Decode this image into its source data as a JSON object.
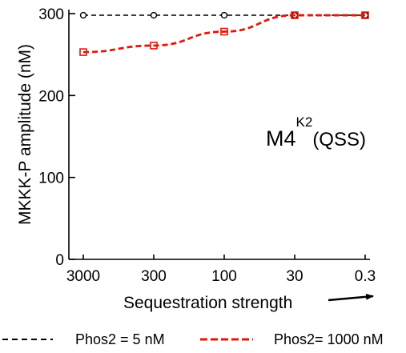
{
  "chart_data": {
    "type": "line",
    "categories": [
      "3000",
      "300",
      "100",
      "30",
      "0.3"
    ],
    "xlabel": "Sequestration strength",
    "ylabel": "MKKK-P amplitude (nM)",
    "ylim": [
      0,
      300
    ],
    "yticks": [
      0,
      100,
      200,
      300
    ],
    "grid": false,
    "legend_position": "bottom",
    "annotation": {
      "main": "M4",
      "superscript": "K2",
      "suffix": "(QSS)"
    },
    "series": [
      {
        "name": "Phos2 = 5 nM",
        "values": [
          298,
          298,
          298,
          298,
          298
        ],
        "color": "#000000",
        "marker": "circle",
        "line_style": "dashed"
      },
      {
        "name": "Phos2= 1000 nM",
        "values": [
          253,
          261,
          278,
          298,
          298
        ],
        "color": "#e3170a",
        "marker": "square",
        "line_style": "dashed"
      }
    ]
  }
}
